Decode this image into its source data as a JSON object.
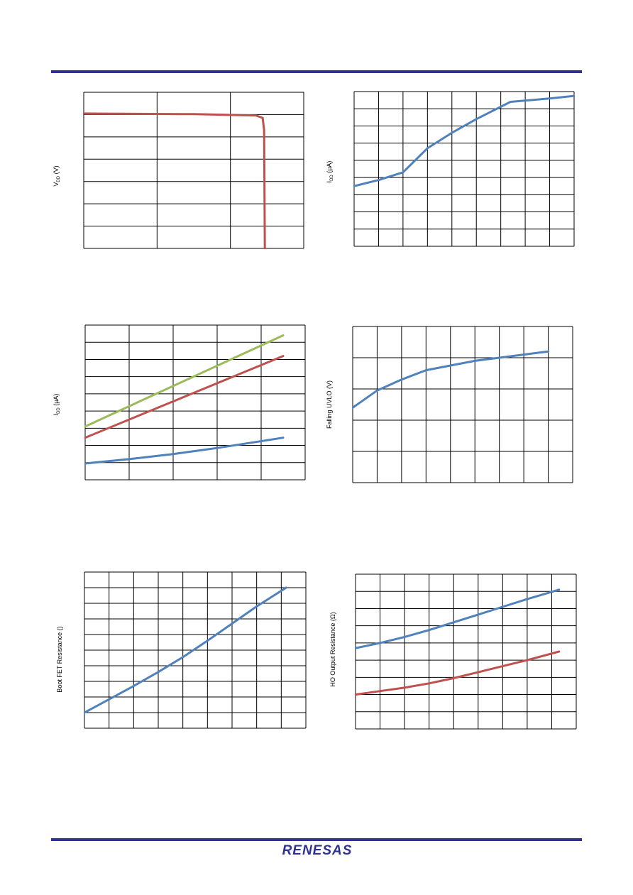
{
  "page": {
    "brand_logo": "RENESAS",
    "rule_color": "#2e3192"
  },
  "chart_data": [
    {
      "id": "c1",
      "type": "line",
      "ylabel": "V",
      "ylabel_sub": "DD",
      "ylabel_unit": " (V)",
      "grid_cols": 3,
      "grid_rows": 7,
      "grid": true,
      "xlim": [
        0,
        3
      ],
      "ylim": [
        0,
        7
      ],
      "series": [
        {
          "color": "#c0504d",
          "points": [
            [
              0,
              6.05
            ],
            [
              1.5,
              6.02
            ],
            [
              2.35,
              5.96
            ],
            [
              2.44,
              5.85
            ],
            [
              2.46,
              5.3
            ],
            [
              2.47,
              0
            ]
          ]
        }
      ]
    },
    {
      "id": "c2",
      "type": "line",
      "ylabel": "I",
      "ylabel_sub": "DD",
      "ylabel_unit": " (µA)",
      "grid_cols": 9,
      "grid_rows": 9,
      "grid": true,
      "xlim": [
        0,
        9
      ],
      "ylim": [
        0,
        9
      ],
      "series": [
        {
          "color": "#4f81bd",
          "points": [
            [
              0,
              3.5
            ],
            [
              1,
              3.85
            ],
            [
              2,
              4.3
            ],
            [
              3,
              5.7
            ],
            [
              4,
              6.6
            ],
            [
              5,
              7.4
            ],
            [
              6.4,
              8.4
            ],
            [
              8,
              8.6
            ],
            [
              9,
              8.75
            ]
          ]
        }
      ]
    },
    {
      "id": "c3",
      "type": "line",
      "ylabel": "I",
      "ylabel_sub": "DD",
      "ylabel_unit": " (µA)",
      "grid_cols": 5,
      "grid_rows": 9,
      "grid": true,
      "xlim": [
        0,
        5
      ],
      "ylim": [
        0,
        9
      ],
      "series": [
        {
          "color": "#9bbb59",
          "points": [
            [
              0,
              3.1
            ],
            [
              4.5,
              8.4
            ]
          ]
        },
        {
          "color": "#c0504d",
          "points": [
            [
              0,
              2.45
            ],
            [
              4.5,
              7.2
            ]
          ]
        },
        {
          "color": "#4f81bd",
          "points": [
            [
              0,
              0.95
            ],
            [
              1,
              1.2
            ],
            [
              2,
              1.5
            ],
            [
              3,
              1.85
            ],
            [
              4.5,
              2.45
            ]
          ]
        }
      ]
    },
    {
      "id": "c4",
      "type": "line",
      "ylabel": "Falling UVLO (V)",
      "ylabel_sub": "",
      "ylabel_unit": "",
      "grid_cols": 9,
      "grid_rows": 5,
      "grid": true,
      "xlim": [
        0,
        9
      ],
      "ylim": [
        0,
        5
      ],
      "series": [
        {
          "color": "#4f81bd",
          "points": [
            [
              0,
              2.4
            ],
            [
              1,
              2.95
            ],
            [
              2,
              3.3
            ],
            [
              3,
              3.6
            ],
            [
              4,
              3.75
            ],
            [
              5,
              3.9
            ],
            [
              6,
              4.0
            ],
            [
              7,
              4.1
            ],
            [
              8,
              4.2
            ]
          ]
        }
      ]
    },
    {
      "id": "c5",
      "type": "line",
      "ylabel": "Boot FET Resistance (",
      "ylabel_sub": "",
      "ylabel_unit": ")",
      "grid_cols": 9,
      "grid_rows": 10,
      "grid": true,
      "xlim": [
        0,
        9
      ],
      "ylim": [
        0,
        10
      ],
      "series": [
        {
          "color": "#4f81bd",
          "points": [
            [
              0,
              1.0
            ],
            [
              1,
              1.85
            ],
            [
              2,
              2.7
            ],
            [
              3,
              3.6
            ],
            [
              4,
              4.55
            ],
            [
              5,
              5.6
            ],
            [
              6,
              6.7
            ],
            [
              7,
              7.8
            ],
            [
              8.2,
              9.0
            ]
          ]
        }
      ]
    },
    {
      "id": "c6",
      "type": "line",
      "ylabel": "HO Output Resistance (Ω)",
      "ylabel_sub": "",
      "ylabel_unit": "",
      "grid_cols": 9,
      "grid_rows": 9,
      "grid": true,
      "xlim": [
        0,
        9
      ],
      "ylim": [
        0,
        9
      ],
      "series": [
        {
          "color": "#4f81bd",
          "points": [
            [
              0,
              4.7
            ],
            [
              1,
              5.0
            ],
            [
              2,
              5.35
            ],
            [
              3,
              5.75
            ],
            [
              4,
              6.2
            ],
            [
              5,
              6.65
            ],
            [
              6,
              7.1
            ],
            [
              7,
              7.55
            ],
            [
              8.3,
              8.1
            ]
          ]
        },
        {
          "color": "#c0504d",
          "points": [
            [
              0,
              2.0
            ],
            [
              1,
              2.2
            ],
            [
              2,
              2.4
            ],
            [
              3,
              2.65
            ],
            [
              4,
              2.95
            ],
            [
              5,
              3.3
            ],
            [
              6,
              3.65
            ],
            [
              7,
              4.0
            ],
            [
              8.3,
              4.5
            ]
          ]
        }
      ]
    }
  ]
}
